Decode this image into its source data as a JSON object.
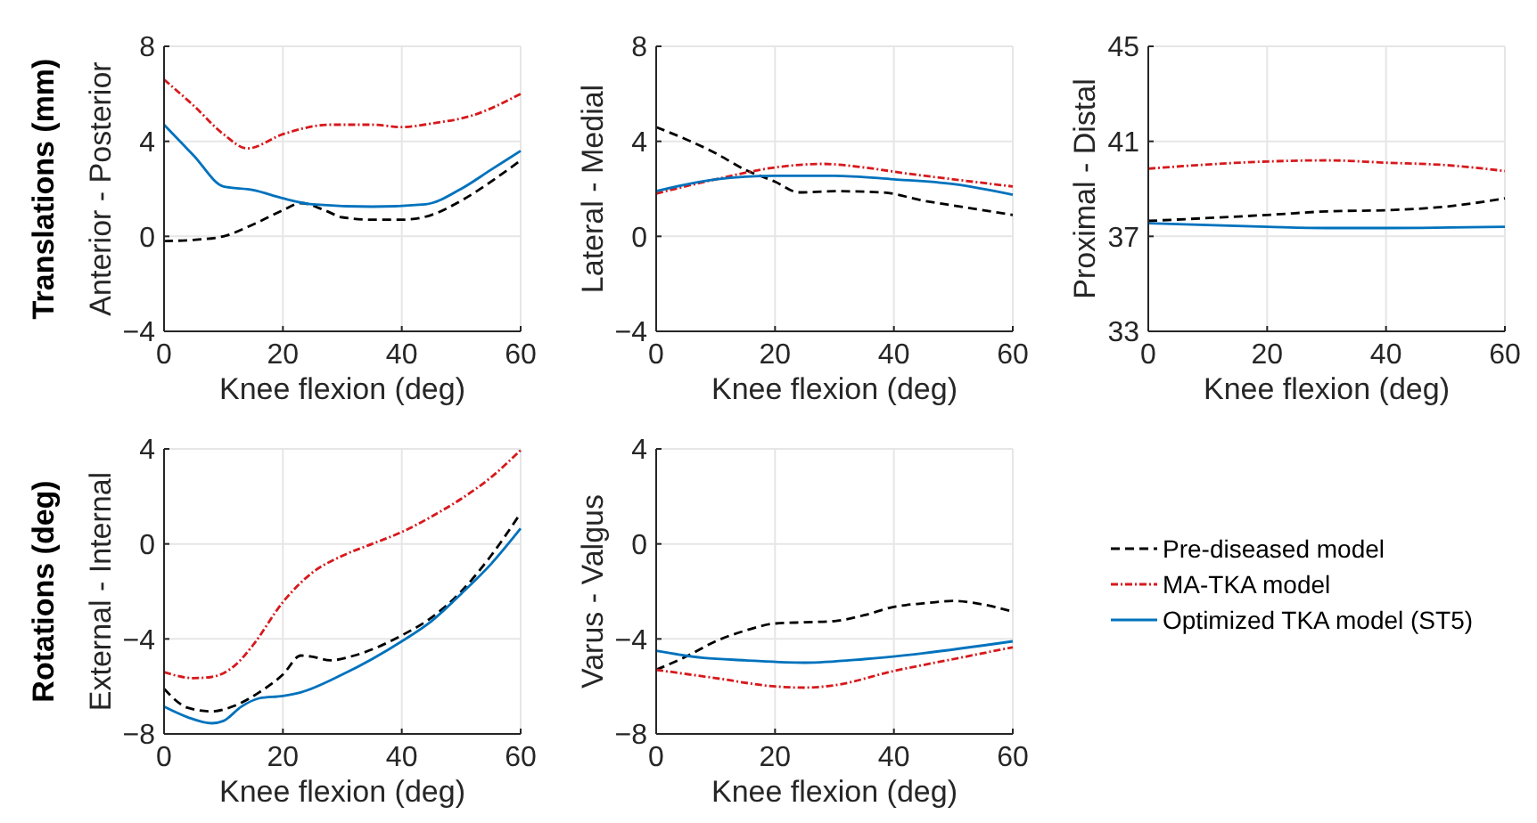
{
  "chart_data": [
    {
      "type": "line",
      "ylabel": "Anterior - Posterior",
      "xlabel": "Knee flexion (deg)",
      "annotations": [
        "Translations (mm)"
      ],
      "xlim": [
        0,
        60
      ],
      "xticks": [
        0,
        20,
        40,
        60
      ],
      "ylim": [
        -4,
        8
      ],
      "yticks": [
        -4,
        0,
        4,
        8
      ],
      "grid": true,
      "series": [
        {
          "color": "#000000",
          "line_style": "dashed",
          "x": [
            0,
            5,
            10,
            15,
            20,
            23,
            27,
            30,
            35,
            40,
            45,
            50,
            55,
            60
          ],
          "values": [
            -0.2,
            -0.15,
            0,
            0.5,
            1.1,
            1.4,
            1.1,
            0.8,
            0.7,
            0.7,
            0.9,
            1.5,
            2.3,
            3.2
          ]
        },
        {
          "color": "#d7191c",
          "line_style": "dotted",
          "x": [
            0,
            5,
            10,
            14,
            20,
            28,
            35,
            40,
            45,
            52,
            60
          ],
          "values": [
            6.6,
            5.5,
            4.3,
            3.7,
            4.3,
            4.7,
            4.7,
            4.6,
            4.75,
            5.1,
            6
          ]
        },
        {
          "color": "#0072bd",
          "line_style": "solid",
          "x": [
            0,
            5,
            10,
            15,
            20,
            25,
            35,
            44,
            50,
            55,
            60
          ],
          "values": [
            4.7,
            3.4,
            2.1,
            1.95,
            1.6,
            1.35,
            1.25,
            1.35,
            2,
            2.8,
            3.6
          ]
        }
      ]
    },
    {
      "type": "line",
      "ylabel": "Lateral - Medial",
      "xlabel": "Knee flexion (deg)",
      "xlim": [
        0,
        60
      ],
      "xticks": [
        0,
        20,
        40,
        60
      ],
      "ylim": [
        -4,
        8
      ],
      "yticks": [
        -4,
        0,
        4,
        8
      ],
      "grid": true,
      "series": [
        {
          "color": "#000000",
          "line_style": "dashed",
          "x": [
            0,
            10,
            15,
            20,
            24,
            30,
            38,
            45,
            50,
            60
          ],
          "values": [
            4.6,
            3.5,
            2.8,
            2.3,
            1.85,
            1.9,
            1.85,
            1.5,
            1.3,
            0.9
          ]
        },
        {
          "color": "#d7191c",
          "line_style": "dotted",
          "x": [
            0,
            10,
            20,
            28,
            35,
            42,
            50,
            60
          ],
          "values": [
            1.8,
            2.4,
            2.9,
            3.05,
            2.9,
            2.65,
            2.4,
            2.1
          ]
        },
        {
          "color": "#0072bd",
          "line_style": "solid",
          "x": [
            0,
            10,
            20,
            30,
            40,
            50,
            60
          ],
          "values": [
            1.9,
            2.4,
            2.55,
            2.55,
            2.4,
            2.2,
            1.75
          ]
        }
      ]
    },
    {
      "type": "line",
      "ylabel": "Proximal - Distal",
      "xlabel": "Knee flexion (deg)",
      "xlim": [
        0,
        60
      ],
      "xticks": [
        0,
        20,
        40,
        60
      ],
      "ylim": [
        33,
        45
      ],
      "yticks": [
        33,
        37,
        41,
        45
      ],
      "grid": true,
      "series": [
        {
          "color": "#000000",
          "line_style": "dashed",
          "x": [
            0,
            20,
            30,
            40,
            50,
            60
          ],
          "values": [
            37.65,
            37.9,
            38.05,
            38.1,
            38.25,
            38.6
          ]
        },
        {
          "color": "#d7191c",
          "line_style": "dotted",
          "x": [
            0,
            20,
            30,
            40,
            50,
            60
          ],
          "values": [
            39.85,
            40.15,
            40.2,
            40.1,
            40,
            39.75
          ]
        },
        {
          "color": "#0072bd",
          "line_style": "solid",
          "x": [
            0,
            20,
            30,
            40,
            60
          ],
          "values": [
            37.55,
            37.4,
            37.35,
            37.35,
            37.4
          ]
        }
      ]
    },
    {
      "type": "line",
      "ylabel": "External - Internal",
      "xlabel": "Knee flexion (deg)",
      "annotations": [
        "Rotations (deg)"
      ],
      "xlim": [
        0,
        60
      ],
      "xticks": [
        0,
        20,
        40,
        60
      ],
      "ylim": [
        -8,
        4
      ],
      "yticks": [
        -8,
        -4,
        0,
        4
      ],
      "grid": true,
      "series": [
        {
          "color": "#000000",
          "line_style": "dashed",
          "x": [
            0,
            4,
            8,
            12,
            16,
            20,
            23,
            25,
            28,
            32,
            40,
            45,
            50,
            55,
            60
          ],
          "values": [
            -6.1,
            -6.9,
            -7.05,
            -6.8,
            -6.25,
            -5.5,
            -4.7,
            -4.75,
            -4.9,
            -4.7,
            -3.85,
            -3.1,
            -2,
            -0.5,
            1.3
          ]
        },
        {
          "color": "#d7191c",
          "line_style": "dotted",
          "x": [
            0,
            5,
            8,
            12,
            15,
            20,
            25,
            30,
            35,
            40,
            45,
            50,
            55,
            60
          ],
          "values": [
            -5.4,
            -5.65,
            -5.6,
            -5.1,
            -4.25,
            -2.45,
            -1.2,
            -0.5,
            0,
            0.5,
            1.15,
            1.9,
            2.8,
            3.95
          ]
        },
        {
          "color": "#0072bd",
          "line_style": "solid",
          "x": [
            0,
            4,
            8,
            10,
            13,
            16,
            20,
            23,
            30,
            40,
            45,
            50,
            55,
            60
          ],
          "values": [
            -6.85,
            -7.3,
            -7.55,
            -7.45,
            -6.85,
            -6.5,
            -6.4,
            -6.25,
            -5.5,
            -4.1,
            -3.25,
            -2.1,
            -0.85,
            0.65
          ]
        }
      ]
    },
    {
      "type": "line",
      "ylabel": "Varus - Valgus",
      "xlabel": "Knee flexion (deg)",
      "xlim": [
        0,
        60
      ],
      "xticks": [
        0,
        20,
        40,
        60
      ],
      "ylim": [
        -8,
        4
      ],
      "yticks": [
        -8,
        -4,
        0,
        4
      ],
      "grid": true,
      "legend": "right",
      "series": [
        {
          "name": "Pre-diseased model",
          "color": "#000000",
          "line_style": "dashed",
          "x": [
            0,
            5,
            10,
            15,
            20,
            25,
            30,
            35,
            40,
            45,
            50,
            55,
            60
          ],
          "values": [
            -5.3,
            -4.75,
            -4.1,
            -3.65,
            -3.35,
            -3.3,
            -3.25,
            -3,
            -2.65,
            -2.5,
            -2.4,
            -2.55,
            -2.85
          ]
        },
        {
          "name": "MA-TKA model",
          "color": "#d7191c",
          "line_style": "dotted",
          "x": [
            0,
            10,
            20,
            25,
            30,
            40,
            50,
            60
          ],
          "values": [
            -5.3,
            -5.65,
            -6,
            -6.05,
            -5.95,
            -5.35,
            -4.85,
            -4.35
          ]
        },
        {
          "name": "Optimized TKA model (ST5)",
          "color": "#0072bd",
          "line_style": "solid",
          "x": [
            0,
            8,
            15,
            25,
            35,
            45,
            60
          ],
          "values": [
            -4.5,
            -4.8,
            -4.9,
            -5,
            -4.85,
            -4.6,
            -4.1
          ]
        }
      ]
    }
  ]
}
